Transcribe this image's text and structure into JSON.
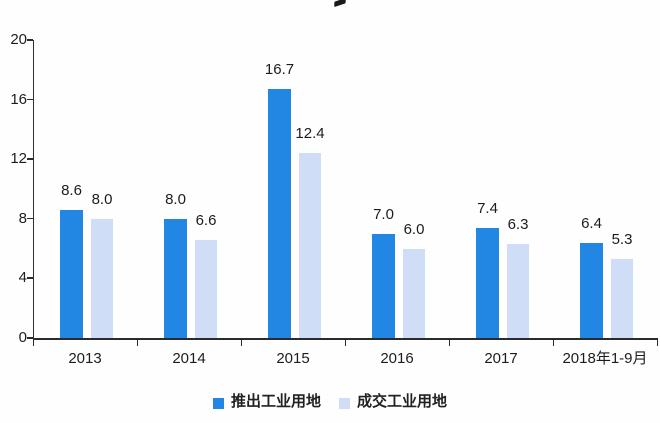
{
  "chart_data": {
    "type": "bar",
    "title": "",
    "categories": [
      "2013",
      "2014",
      "2015",
      "2016",
      "2017",
      "2018年1-9月"
    ],
    "series": [
      {
        "name": "推出工业用地",
        "color": "#2287e2",
        "values": [
          8.6,
          8.0,
          16.7,
          7.0,
          7.4,
          6.4
        ]
      },
      {
        "name": "成交工业用地",
        "color": "#cfdef6",
        "values": [
          8.0,
          6.6,
          12.4,
          6.0,
          6.3,
          5.3
        ]
      }
    ],
    "ylim": [
      0,
      20
    ],
    "yticks": [
      0,
      4,
      8,
      12,
      16,
      20
    ],
    "grid": false,
    "legend_position": "bottom",
    "value_labels": true,
    "value_label_decimals": 1,
    "axis_color": "#2b2b2b",
    "text_color": "#1d1d1d"
  }
}
